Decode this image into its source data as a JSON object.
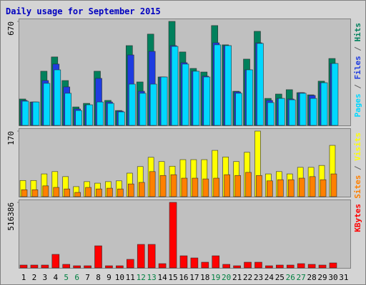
{
  "chart_data": [
    {
      "type": "bar",
      "title": "Daily usage for September 2015",
      "ylim": [
        0,
        670
      ],
      "yticks": [
        670
      ],
      "legend_separator": " / ",
      "series": [
        {
          "name": "Hits",
          "color": "#00805c",
          "values": [
            170,
            151,
            349,
            441,
            289,
            119,
            142,
            349,
            161,
            96,
            514,
            280,
            588,
            312,
            670,
            473,
            367,
            344,
            643,
            519,
            220,
            427,
            606,
            174,
            202,
            230,
            211,
            197,
            285,
            431,
            0
          ]
        },
        {
          "name": "Files",
          "color": "#1e3ce0",
          "values": [
            161,
            151,
            289,
            395,
            248,
            106,
            129,
            303,
            151,
            92,
            454,
            220,
            477,
            312,
            514,
            404,
            349,
            317,
            532,
            514,
            216,
            358,
            532,
            161,
            174,
            170,
            211,
            193,
            275,
            399,
            0
          ]
        },
        {
          "name": "Pages",
          "color": "#00d8ff",
          "values": [
            156,
            151,
            271,
            358,
            207,
            96,
            133,
            151,
            142,
            87,
            266,
            207,
            266,
            312,
            509,
            395,
            349,
            312,
            519,
            514,
            207,
            358,
            528,
            147,
            174,
            165,
            207,
            174,
            275,
            399,
            0
          ]
        }
      ]
    },
    {
      "type": "bar",
      "ylim": [
        0,
        170
      ],
      "yticks": [
        170
      ],
      "legend_separator": " / ",
      "series": [
        {
          "name": "Visits",
          "color": "#ffff00",
          "values": [
            42,
            42,
            59,
            65,
            52,
            26,
            39,
            35,
            39,
            41,
            61,
            78,
            102,
            91,
            79,
            96,
            96,
            96,
            120,
            103,
            91,
            115,
            170,
            59,
            65,
            59,
            76,
            76,
            81,
            133,
            0
          ]
        },
        {
          "name": "Sites",
          "color": "#ff8000",
          "values": [
            18,
            18,
            28,
            24,
            20,
            11,
            24,
            20,
            22,
            20,
            33,
            37,
            65,
            55,
            57,
            48,
            48,
            46,
            48,
            57,
            55,
            63,
            55,
            41,
            44,
            44,
            48,
            52,
            44,
            59,
            0
          ]
        }
      ]
    },
    {
      "type": "bar",
      "ylim": [
        0,
        516386
      ],
      "yticks": [
        516386
      ],
      "categories": [
        "1",
        "2",
        "3",
        "4",
        "5",
        "6",
        "7",
        "8",
        "9",
        "10",
        "11",
        "12",
        "13",
        "14",
        "15",
        "16",
        "17",
        "18",
        "19",
        "20",
        "21",
        "22",
        "23",
        "24",
        "25",
        "26",
        "27",
        "28",
        "29",
        "30",
        "31"
      ],
      "category_colors": [
        "#000",
        "#000",
        "#000",
        "#000",
        "#008040",
        "#008040",
        "#000",
        "#000",
        "#000",
        "#000",
        "#000",
        "#008040",
        "#008040",
        "#000",
        "#000",
        "#000",
        "#000",
        "#000",
        "#008040",
        "#008040",
        "#000",
        "#000",
        "#000",
        "#000",
        "#000",
        "#008040",
        "#008040",
        "#000",
        "#000",
        "#000",
        "#000"
      ],
      "series": [
        {
          "name": "KBytes",
          "color": "#ff0000",
          "values": [
            22453,
            22453,
            22453,
            106650,
            28066,
            16839,
            16839,
            174000,
            16839,
            16839,
            67356,
            185226,
            185226,
            33678,
            516386,
            95420,
            78582,
            44904,
            95420,
            28066,
            16839,
            44904,
            44904,
            16839,
            22453,
            22453,
            33678,
            28066,
            22453,
            39291,
            0
          ]
        }
      ]
    }
  ]
}
